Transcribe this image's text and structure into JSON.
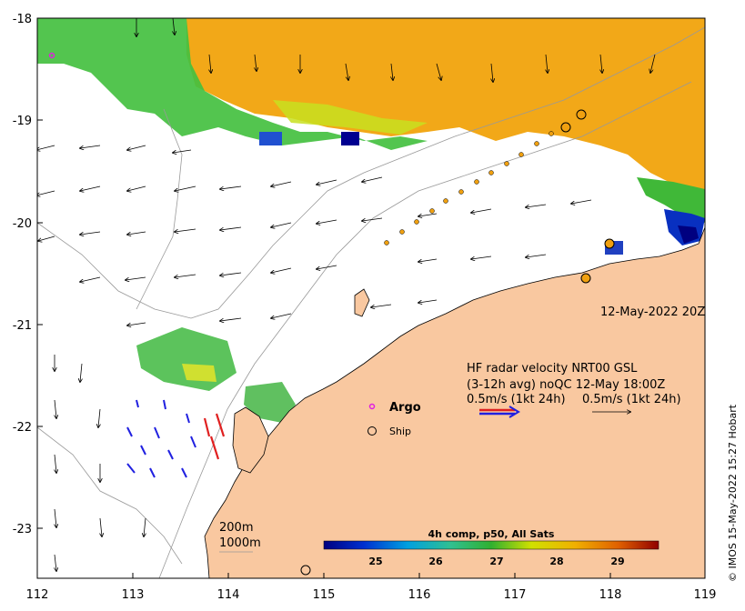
{
  "map": {
    "x_ticks": [
      "112",
      "113",
      "114",
      "115",
      "116",
      "117",
      "118",
      "119"
    ],
    "y_ticks": [
      "-18",
      "-19",
      "-20",
      "-21",
      "-22",
      "-23"
    ],
    "date_label": "12-May-2022 20Z",
    "info_line1": "HF radar velocity  NRT00 GSL",
    "info_line2": "(3-12h avg) noQC 12-May 18:00Z",
    "info_line3a": "0.5m/s (1kt 24h)",
    "info_line3b": "0.5m/s (1kt 24h)",
    "legend_argo": "Argo",
    "legend_ship": "Ship",
    "contour_200": "200m",
    "contour_1000": "1000m",
    "colorbar_title": "4h comp, p50, All Sats",
    "colorbar_ticks": [
      "25",
      "26",
      "27",
      "28",
      "29"
    ],
    "credit": "© IMOS 15-May-2022 15:27 Hobart",
    "colors": {
      "land": "#f9c8a0",
      "argo": "#e020e0",
      "ship_fill": "#f0a010",
      "radar_red": "#e02020",
      "radar_blue": "#2020e0"
    }
  }
}
